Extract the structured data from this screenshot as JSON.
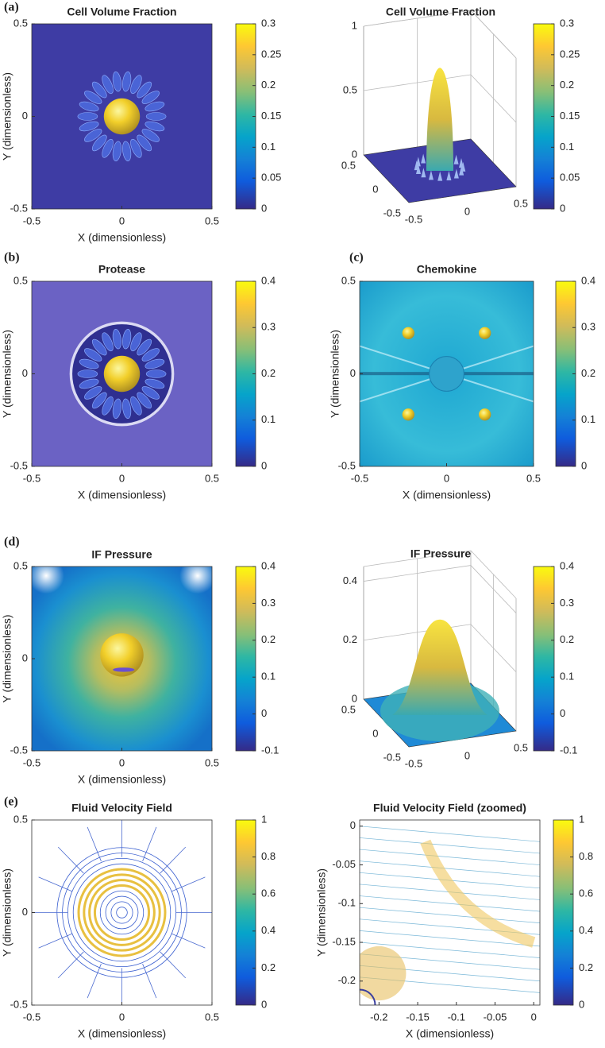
{
  "chart_data": [
    {
      "type": "heatmap",
      "panel_label": "(a)",
      "title": "Cell Volume Fraction",
      "x_label": "X (dimensionless)",
      "y_label": "Y (dimensionless)",
      "xlim": [
        -0.5,
        0.5
      ],
      "ylim": [
        -0.5,
        0.5
      ],
      "xticks": [
        -0.5,
        0,
        0.5
      ],
      "yticks": [
        -0.5,
        0,
        0.5
      ],
      "colormap": "parula",
      "clim": [
        0,
        0.3
      ],
      "cticks": [
        0,
        0.05,
        0.1,
        0.15,
        0.2,
        0.25,
        0.3
      ]
    },
    {
      "type": "surface3d",
      "title": "Cell Volume Fraction",
      "xlim": [
        -0.5,
        0.5
      ],
      "ylim": [
        -0.5,
        0.5
      ],
      "zlim": [
        0,
        1
      ],
      "xticks": [
        -0.5,
        0,
        0.5
      ],
      "yticks": [
        -0.5,
        0,
        0.5
      ],
      "zticks": [
        0,
        0.5,
        1
      ],
      "colormap": "parula",
      "clim": [
        0,
        0.3
      ],
      "cticks": [
        0,
        0.05,
        0.1,
        0.15,
        0.2,
        0.25,
        0.3
      ]
    },
    {
      "type": "heatmap",
      "panel_label": "(b)",
      "title": "Protease",
      "x_label": "X (dimensionless)",
      "y_label": "Y (dimensionless)",
      "xlim": [
        -0.5,
        0.5
      ],
      "ylim": [
        -0.5,
        0.5
      ],
      "xticks": [
        -0.5,
        0,
        0.5
      ],
      "yticks": [
        -0.5,
        0,
        0.5
      ],
      "colormap": "parula",
      "clim": [
        0,
        0.4
      ],
      "cticks": [
        0,
        0.1,
        0.2,
        0.3,
        0.4
      ]
    },
    {
      "type": "heatmap",
      "panel_label": "(c)",
      "title": "Chemokine",
      "x_label": "X (dimensionless)",
      "y_label": "Y (dimensionless)",
      "xlim": [
        -0.5,
        0.5
      ],
      "ylim": [
        -0.5,
        0.5
      ],
      "xticks": [
        -0.5,
        0,
        0.5
      ],
      "yticks": [
        -0.5,
        0,
        0.5
      ],
      "colormap": "parula",
      "clim": [
        0,
        0.4
      ],
      "cticks": [
        0,
        0.1,
        0.2,
        0.3,
        0.4
      ]
    },
    {
      "type": "heatmap",
      "panel_label": "(d)",
      "title": "IF Pressure",
      "x_label": "X (dimensionless)",
      "y_label": "Y (dimensionless)",
      "xlim": [
        -0.5,
        0.5
      ],
      "ylim": [
        -0.5,
        0.5
      ],
      "xticks": [
        -0.5,
        0,
        0.5
      ],
      "yticks": [
        -0.5,
        0,
        0.5
      ],
      "colormap": "parula",
      "clim": [
        -0.1,
        0.4
      ],
      "cticks": [
        -0.1,
        0,
        0.1,
        0.2,
        0.3,
        0.4
      ]
    },
    {
      "type": "surface3d",
      "title": "IF Pressure",
      "xlim": [
        -0.5,
        0.5
      ],
      "ylim": [
        -0.5,
        0.5
      ],
      "zlim": [
        0,
        0.45
      ],
      "xticks": [
        -0.5,
        0,
        0.5
      ],
      "yticks": [
        -0.5,
        0,
        0.5
      ],
      "zticks": [
        0,
        0.2,
        0.4
      ],
      "colormap": "parula",
      "clim": [
        -0.1,
        0.4
      ],
      "cticks": [
        -0.1,
        0,
        0.1,
        0.2,
        0.3,
        0.4
      ]
    },
    {
      "type": "contour",
      "panel_label": "(e)",
      "title": "Fluid Velocity Field",
      "x_label": "X (dimensionless)",
      "y_label": "Y (dimensionless)",
      "xlim": [
        -0.5,
        0.5
      ],
      "ylim": [
        -0.5,
        0.5
      ],
      "xticks": [
        -0.5,
        0,
        0.5
      ],
      "yticks": [
        -0.5,
        0,
        0.5
      ],
      "colormap": "parula",
      "clim": [
        0,
        1
      ],
      "cticks": [
        0,
        0.2,
        0.4,
        0.6,
        0.8,
        1
      ]
    },
    {
      "type": "quiver",
      "title": "Fluid Velocity Field (zoomed)",
      "x_label": "X (dimensionless)",
      "y_label": "Y (dimensionless)",
      "xlim": [
        -0.225,
        0.008
      ],
      "ylim": [
        -0.231,
        0.008
      ],
      "xticks": [
        -0.2,
        -0.15,
        -0.1,
        -0.05,
        0
      ],
      "yticks": [
        -0.2,
        -0.15,
        -0.1,
        -0.05,
        0
      ],
      "colormap": "parula",
      "clim": [
        0,
        1
      ],
      "cticks": [
        0,
        0.2,
        0.4,
        0.6,
        0.8,
        1
      ]
    }
  ]
}
